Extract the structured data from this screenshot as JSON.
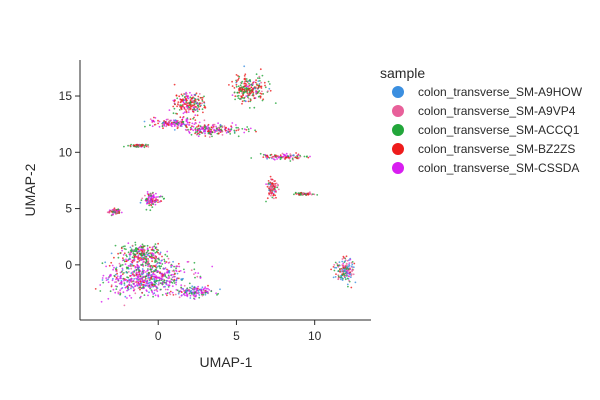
{
  "chart_data": {
    "type": "scatter",
    "xlabel": "UMAP-1",
    "ylabel": "UMAP-2",
    "xlim": [
      -5,
      13.6
    ],
    "ylim": [
      -4.9,
      18.2
    ],
    "x_ticks": [
      0,
      5,
      10
    ],
    "y_ticks": [
      0,
      5,
      10,
      15
    ],
    "grid": false,
    "legend": {
      "title": "sample",
      "position": "right",
      "entries": [
        {
          "name": "colon_transverse_SM-A9HOW",
          "color": "#3b8fe0"
        },
        {
          "name": "colon_transverse_SM-A9VP4",
          "color": "#e8609a"
        },
        {
          "name": "colon_transverse_SM-ACCQ1",
          "color": "#22a63a"
        },
        {
          "name": "colon_transverse_SM-BZ2ZS",
          "color": "#ee1c1c"
        },
        {
          "name": "colon_transverse_SM-CSSDA",
          "color": "#d81ef0"
        }
      ]
    },
    "clusters": [
      {
        "center": [
          -0.8,
          -1.2
        ],
        "spread": [
          2.2,
          1.2
        ],
        "weights": [
          0.12,
          0.12,
          0.22,
          0.1,
          0.44
        ]
      },
      {
        "center": [
          -1.0,
          0.8
        ],
        "spread": [
          1.1,
          0.9
        ],
        "weights": [
          0.06,
          0.1,
          0.42,
          0.2,
          0.22
        ]
      },
      {
        "center": [
          2.2,
          -2.4
        ],
        "spread": [
          1.0,
          0.4
        ],
        "weights": [
          0.2,
          0.12,
          0.18,
          0.08,
          0.42
        ]
      },
      {
        "center": [
          -0.4,
          5.8
        ],
        "spread": [
          0.5,
          0.5
        ],
        "weights": [
          0.04,
          0.1,
          0.32,
          0.08,
          0.46
        ]
      },
      {
        "center": [
          -2.8,
          4.7
        ],
        "spread": [
          0.3,
          0.2
        ],
        "weights": [
          0.0,
          0.2,
          0.3,
          0.2,
          0.3
        ]
      },
      {
        "center": [
          -1.2,
          10.6
        ],
        "spread": [
          0.5,
          0.1
        ],
        "weights": [
          0.0,
          0.2,
          0.2,
          0.4,
          0.2
        ]
      },
      {
        "center": [
          1.0,
          12.6
        ],
        "spread": [
          1.3,
          0.3
        ],
        "weights": [
          0.06,
          0.16,
          0.14,
          0.2,
          0.44
        ]
      },
      {
        "center": [
          3.4,
          12.0
        ],
        "spread": [
          1.6,
          0.4
        ],
        "weights": [
          0.05,
          0.15,
          0.2,
          0.3,
          0.3
        ]
      },
      {
        "center": [
          2.0,
          14.3
        ],
        "spread": [
          0.8,
          0.8
        ],
        "weights": [
          0.04,
          0.12,
          0.2,
          0.48,
          0.16
        ]
      },
      {
        "center": [
          5.8,
          15.6
        ],
        "spread": [
          0.9,
          0.9
        ],
        "weights": [
          0.04,
          0.1,
          0.36,
          0.42,
          0.08
        ]
      },
      {
        "center": [
          8.0,
          9.6
        ],
        "spread": [
          1.2,
          0.2
        ],
        "weights": [
          0.04,
          0.2,
          0.22,
          0.3,
          0.24
        ]
      },
      {
        "center": [
          7.3,
          6.8
        ],
        "spread": [
          0.3,
          0.7
        ],
        "weights": [
          0.04,
          0.4,
          0.2,
          0.32,
          0.04
        ]
      },
      {
        "center": [
          9.3,
          6.3
        ],
        "spread": [
          0.5,
          0.1
        ],
        "weights": [
          0.0,
          0.2,
          0.3,
          0.4,
          0.1
        ]
      },
      {
        "center": [
          11.9,
          -0.5
        ],
        "spread": [
          0.5,
          0.9
        ],
        "weights": [
          0.3,
          0.22,
          0.2,
          0.24,
          0.04
        ]
      }
    ]
  }
}
